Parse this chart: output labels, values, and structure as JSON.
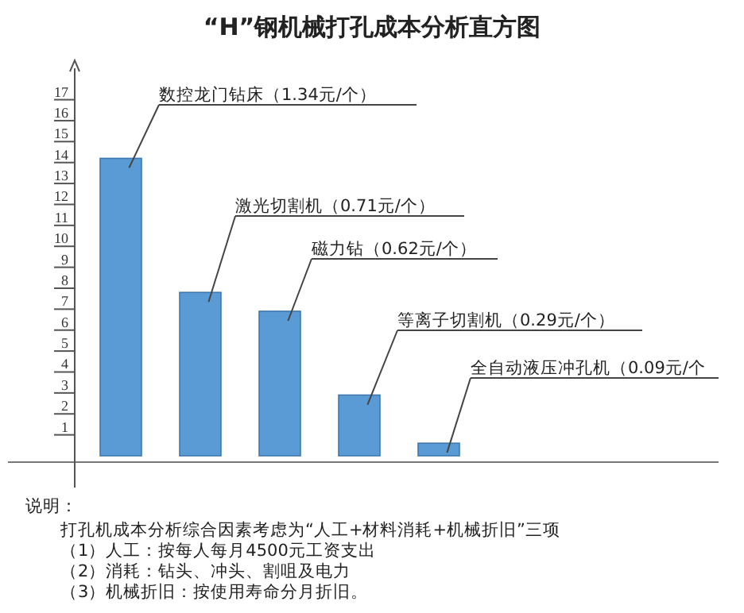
{
  "chart_data": {
    "type": "bar",
    "title": "“H”钢机械打孔成本分析直方图",
    "categories": [
      null,
      null,
      null,
      null,
      null
    ],
    "values": [
      14.2,
      7.8,
      6.9,
      2.9,
      0.6
    ],
    "color": "#5b9bd5",
    "ylim": [
      0,
      18.5
    ],
    "yticks": [
      1,
      2,
      3,
      4,
      5,
      6,
      7,
      8,
      9,
      10,
      11,
      12,
      13,
      14,
      15,
      16,
      17
    ],
    "annotations": [
      "数控龙门钻床（1.34元/个）",
      "激光切割机（0.71元/个）",
      "磁力钻（0.62元/个）",
      "等离子切割机（0.29元/个）",
      "全自动液压冲孔机（0.09元/个",
      "说明：",
      "打孔机成本分析综合因素考虑为“人工+材料消耗+机械折旧”三项",
      "（1）人工：按每人每月4500元工资支出",
      "（2）消耗：钻头、冲头、割咀及电力",
      "（3）机械折旧：按使用寿命分月折旧。"
    ]
  }
}
